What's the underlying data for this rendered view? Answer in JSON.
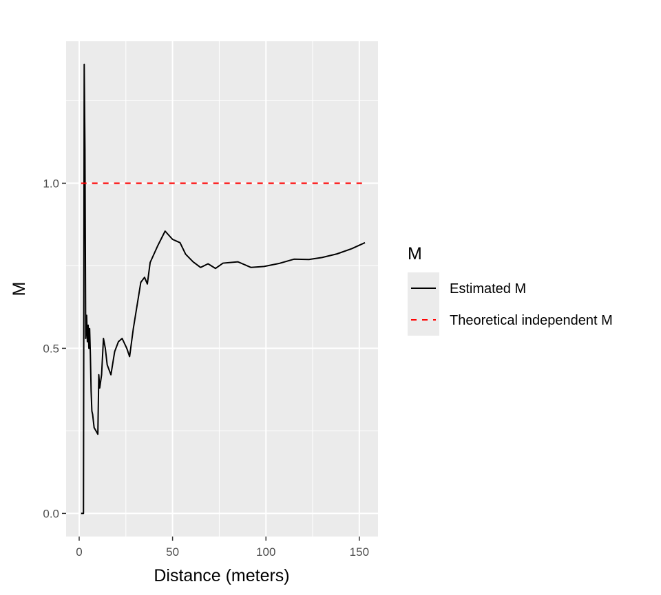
{
  "chart_data": {
    "type": "line",
    "title": "",
    "xlabel": "Distance (meters)",
    "ylabel": "M",
    "xlim": [
      -7,
      160
    ],
    "ylim": [
      -0.07,
      1.43
    ],
    "x_ticks": [
      0,
      50,
      100,
      150
    ],
    "x_tick_labels": [
      "0",
      "50",
      "100",
      "150"
    ],
    "y_ticks": [
      0.0,
      0.5,
      1.0
    ],
    "y_tick_labels": [
      "0.0",
      "0.5",
      "1.0"
    ],
    "grid": true,
    "legend": {
      "title": "M",
      "position": "right"
    },
    "series": [
      {
        "name": "Estimated M",
        "color": "#000000",
        "dash": "solid",
        "x": [
          1.0,
          2.3,
          2.7,
          3.1,
          3.5,
          4.0,
          4.4,
          4.8,
          5.2,
          5.6,
          6.0,
          6.4,
          6.8,
          7.2,
          8.0,
          9.0,
          10.0,
          10.5,
          11.0,
          12.0,
          13.0,
          14.0,
          15.0,
          17.0,
          19.0,
          21.0,
          23.0,
          25.5,
          27.0,
          29.0,
          31.0,
          33.0,
          35.0,
          36.5,
          38.0,
          42.0,
          46.0,
          50.0,
          54.0,
          57.0,
          61.0,
          65.0,
          69.0,
          73.0,
          77.0,
          85.0,
          92.0,
          99.0,
          107.0,
          115.0,
          123.0,
          130.0,
          138.0,
          146.0,
          153.0
        ],
        "y": [
          0.0,
          0.0,
          1.36,
          1.1,
          0.53,
          0.6,
          0.52,
          0.57,
          0.5,
          0.56,
          0.48,
          0.37,
          0.31,
          0.3,
          0.26,
          0.25,
          0.24,
          0.42,
          0.38,
          0.42,
          0.53,
          0.5,
          0.45,
          0.42,
          0.49,
          0.52,
          0.53,
          0.5,
          0.475,
          0.56,
          0.63,
          0.7,
          0.715,
          0.695,
          0.76,
          0.81,
          0.855,
          0.83,
          0.82,
          0.785,
          0.762,
          0.745,
          0.756,
          0.742,
          0.758,
          0.762,
          0.745,
          0.748,
          0.757,
          0.77,
          0.769,
          0.775,
          0.786,
          0.802,
          0.82
        ]
      },
      {
        "name": "Theoretical independent M",
        "color": "#ff0000",
        "dash": "dashed",
        "x": [
          1.0,
          153.0
        ],
        "y": [
          1.0,
          1.0
        ]
      }
    ]
  }
}
